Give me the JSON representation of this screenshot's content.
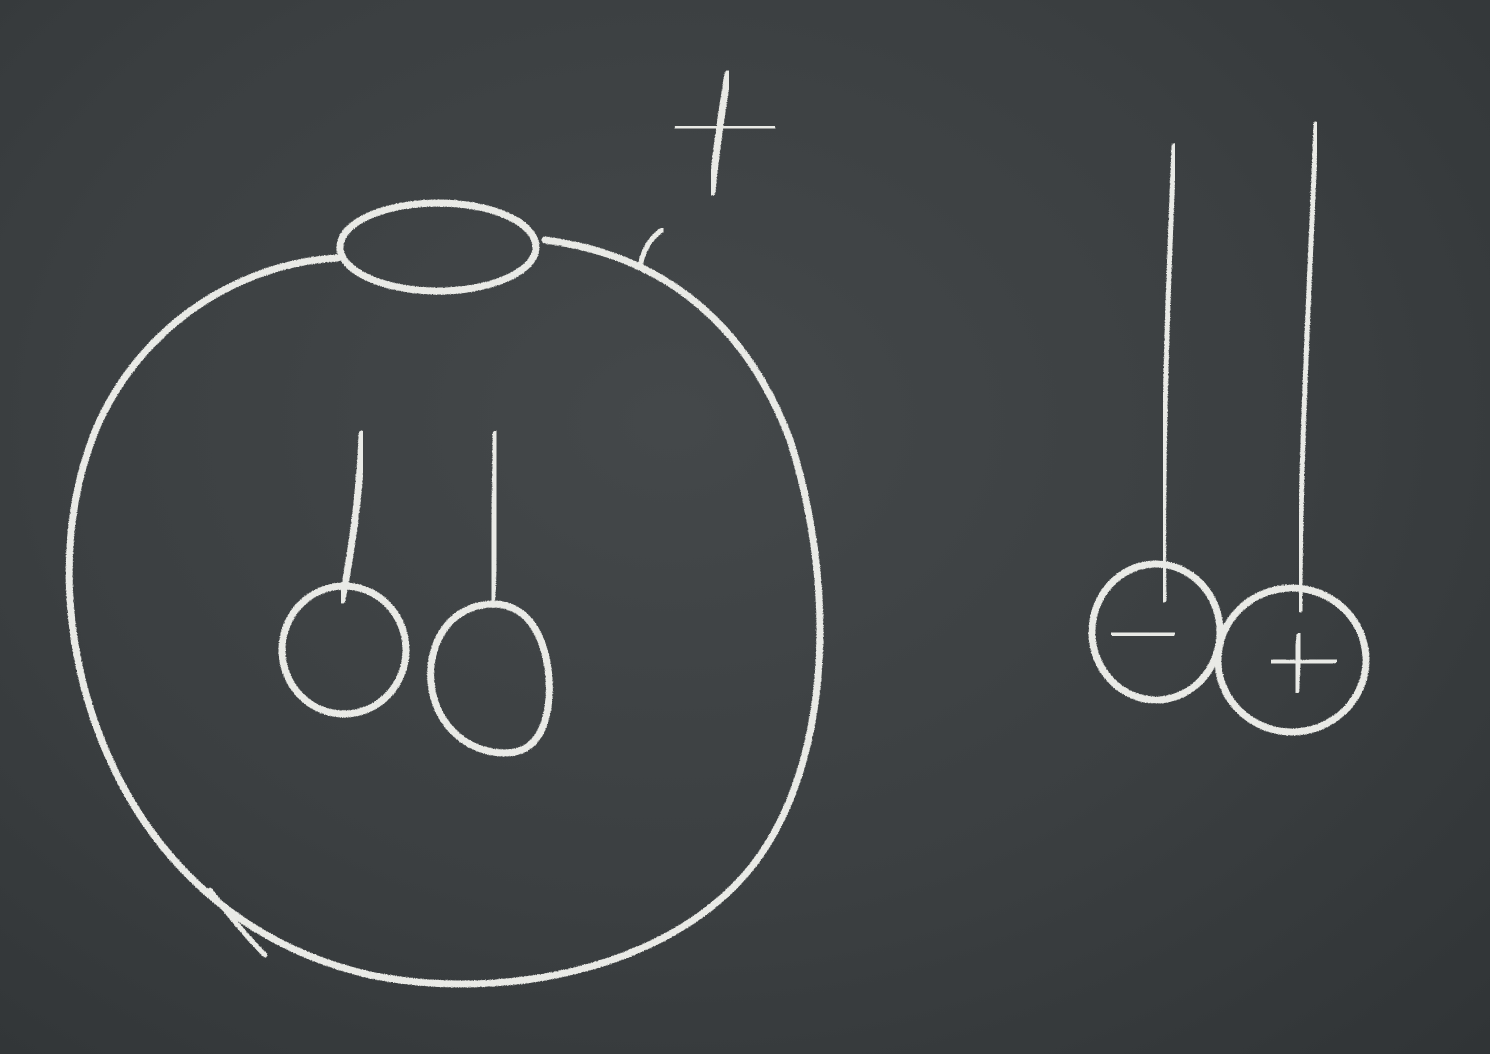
{
  "diagram": {
    "description_labels": {
      "conductor_charge_sign": "+",
      "right_pair_left_ball_charge": "−",
      "right_pair_right_ball_charge": "+"
    },
    "colors": {
      "board": "#3a3e40",
      "chalk": "#e9eae6"
    }
  }
}
